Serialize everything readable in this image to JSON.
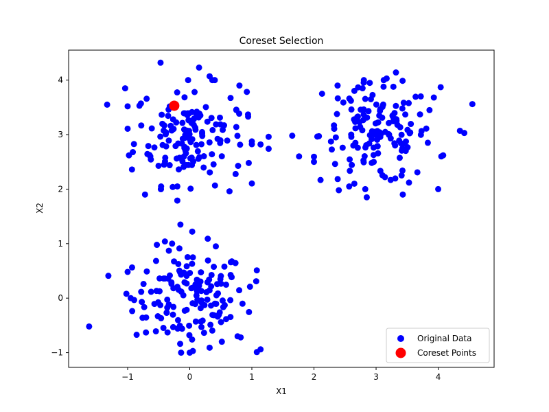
{
  "chart_data": {
    "type": "scatter",
    "title": "Coreset Selection",
    "xlabel": "X1",
    "ylabel": "X2",
    "xlim": [
      -1.95,
      4.9
    ],
    "ylim": [
      -1.27,
      4.55
    ],
    "xticks": [
      -1,
      0,
      1,
      2,
      3,
      4
    ],
    "xtick_labels": [
      "−1",
      "0",
      "1",
      "2",
      "3",
      "4"
    ],
    "yticks": [
      -1,
      0,
      1,
      2,
      3,
      4
    ],
    "ytick_labels": [
      "−1",
      "0",
      "1",
      "2",
      "3",
      "4"
    ],
    "grid": false,
    "legend_position": "lower-right",
    "series": [
      {
        "name": "Original Data",
        "color": "#0000ff",
        "marker": "circle",
        "clusters": [
          {
            "center": [
              0.0,
              0.0
            ],
            "spread": 0.45,
            "count": 160,
            "points": [
              [
                -1.62,
                -0.52
              ],
              [
                -1.31,
                0.41
              ],
              [
                -1.02,
                0.08
              ],
              [
                1.14,
                -0.94
              ],
              [
                1.08,
                -0.99
              ],
              [
                1.08,
                0.51
              ],
              [
                1.07,
                0.31
              ],
              [
                -0.15,
                1.35
              ],
              [
                0.04,
                1.22
              ],
              [
                -0.4,
                1.04
              ],
              [
                0.29,
                1.09
              ],
              [
                0.42,
                0.95
              ],
              [
                0.0,
                -1.0
              ],
              [
                0.05,
                -0.97
              ],
              [
                0.77,
                -0.7
              ],
              [
                0.82,
                -0.72
              ],
              [
                -0.76,
                -0.36
              ],
              [
                -0.95,
                0.0
              ],
              [
                0.97,
                0.21
              ]
            ]
          },
          {
            "center": [
              0.0,
              3.0
            ],
            "spread": 0.45,
            "count": 160,
            "points": [
              -1.33,
              3.55
            ],
            "extra_points": [
              [
                -1.04,
                3.85
              ],
              [
                -0.47,
                4.32
              ],
              [
                0.15,
                4.23
              ],
              [
                0.32,
                4.07
              ],
              [
                0.8,
                3.9
              ],
              [
                -0.93,
                2.36
              ],
              [
                -0.72,
                1.9
              ],
              [
                -0.2,
                1.79
              ],
              [
                -0.2,
                2.05
              ],
              [
                0.64,
                1.96
              ],
              [
                0.95,
                2.48
              ],
              [
                1.14,
                2.82
              ],
              [
                1.27,
                2.96
              ],
              [
                1.27,
                2.74
              ],
              [
                0.94,
                3.33
              ],
              [
                0.75,
                3.45
              ]
            ]
          },
          {
            "center": [
              3.0,
              3.0
            ],
            "spread": 0.45,
            "count": 160,
            "points": [
              [
                1.65,
                2.98
              ],
              [
                1.76,
                2.6
              ],
              [
                2.0,
                2.5
              ],
              [
                2.38,
                3.9
              ],
              [
                2.13,
                3.75
              ],
              [
                2.4,
                1.98
              ],
              [
                2.65,
                2.1
              ],
              [
                2.85,
                1.85
              ],
              [
                3.43,
                1.9
              ],
              [
                3.53,
                2.12
              ],
              [
                3.32,
                4.14
              ],
              [
                3.17,
                4.03
              ],
              [
                4.55,
                3.56
              ],
              [
                4.35,
                3.07
              ],
              [
                4.42,
                3.03
              ],
              [
                4.08,
                2.62
              ],
              [
                4.05,
                2.6
              ],
              [
                4.04,
                3.87
              ],
              [
                3.86,
                3.45
              ],
              [
                3.93,
                3.68
              ]
            ]
          }
        ]
      },
      {
        "name": "Coreset Points",
        "color": "#ff0000",
        "marker": "circle-large",
        "points": [
          [
            -0.25,
            3.53
          ]
        ]
      }
    ]
  }
}
